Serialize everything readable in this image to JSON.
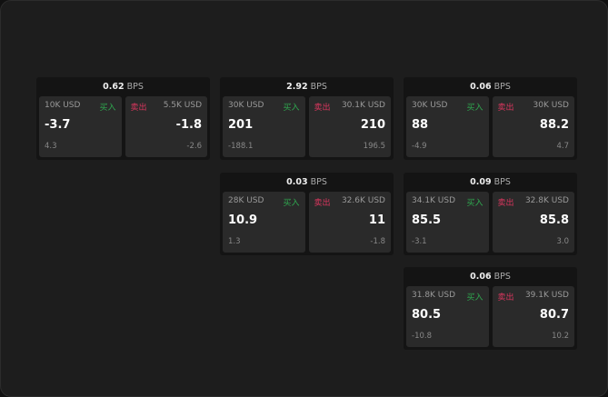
{
  "cards": [
    {
      "bps": "0.62",
      "unit": "BPS",
      "buy": {
        "size": "10K USD",
        "label": "买入",
        "price": "-3.7",
        "change": "4.3"
      },
      "sell": {
        "size": "5.5K USD",
        "label": "卖出",
        "price": "-1.8",
        "change": "-2.6"
      }
    },
    {
      "bps": "2.92",
      "unit": "BPS",
      "buy": {
        "size": "30K USD",
        "label": "买入",
        "price": "201",
        "change": "-188.1"
      },
      "sell": {
        "size": "30.1K USD",
        "label": "卖出",
        "price": "210",
        "change": "196.5"
      }
    },
    {
      "bps": "0.06",
      "unit": "BPS",
      "buy": {
        "size": "30K USD",
        "label": "买入",
        "price": "88",
        "change": "-4.9"
      },
      "sell": {
        "size": "30K USD",
        "label": "卖出",
        "price": "88.2",
        "change": "4.7"
      }
    },
    {
      "bps": "0.03",
      "unit": "BPS",
      "buy": {
        "size": "28K USD",
        "label": "买入",
        "price": "10.9",
        "change": "1.3"
      },
      "sell": {
        "size": "32.6K USD",
        "label": "卖出",
        "price": "11",
        "change": "-1.8"
      }
    },
    {
      "bps": "0.09",
      "unit": "BPS",
      "buy": {
        "size": "34.1K USD",
        "label": "买入",
        "price": "85.5",
        "change": "-3.1"
      },
      "sell": {
        "size": "32.8K USD",
        "label": "卖出",
        "price": "85.8",
        "change": "3.0"
      }
    },
    {
      "bps": "0.06",
      "unit": "BPS",
      "buy": {
        "size": "31.8K USD",
        "label": "买入",
        "price": "80.5",
        "change": "-10.8"
      },
      "sell": {
        "size": "39.1K USD",
        "label": "卖出",
        "price": "80.7",
        "change": "10.2"
      }
    }
  ],
  "colors": {
    "buy": "#2fa84f",
    "sell": "#d9365e"
  }
}
